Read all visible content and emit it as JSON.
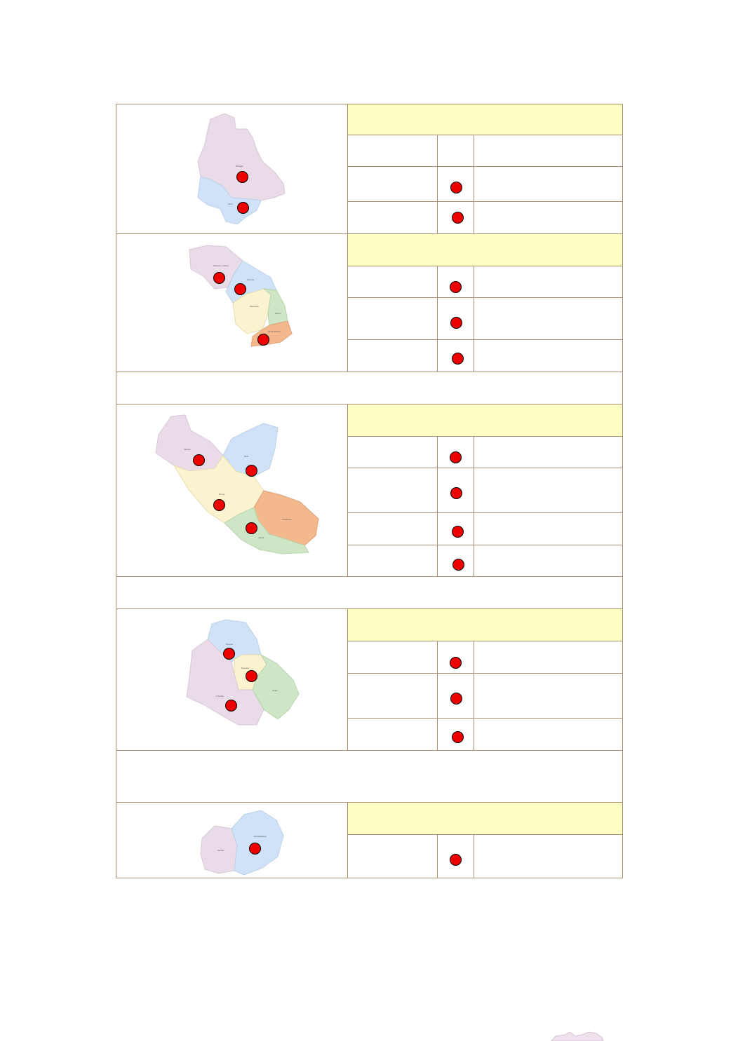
{
  "colors": {
    "header_fill": "#ffffc4",
    "border": "#a8906e",
    "indicator": "#ee0000"
  },
  "regions": [
    {
      "provinces": [
        "Perugia",
        "Terni"
      ],
      "rows": [
        {
          "indicator": false
        },
        {
          "indicator": true
        },
        {
          "indicator": true
        }
      ]
    },
    {
      "provinces": [
        "Pesaro e Urbino",
        "Ancona",
        "Macerata",
        "Fermo",
        "Ascoli Piceno"
      ],
      "rows": [
        {
          "indicator": true
        },
        {
          "indicator": true
        },
        {
          "indicator": true
        }
      ]
    },
    {
      "provinces": [
        "Viterbo",
        "Rieti",
        "Roma",
        "Frosinone",
        "Latina"
      ],
      "rows": [
        {
          "indicator": true
        },
        {
          "indicator": true
        },
        {
          "indicator": true
        },
        {
          "indicator": true
        }
      ]
    },
    {
      "provinces": [
        "Teramo",
        "Pescara",
        "L'Aquila",
        "Chieti"
      ],
      "rows": [
        {
          "indicator": true
        },
        {
          "indicator": true
        },
        {
          "indicator": true
        }
      ]
    },
    {
      "provinces": [
        "Isernia",
        "Campobasso"
      ],
      "rows": [
        {
          "indicator": true
        }
      ]
    }
  ]
}
